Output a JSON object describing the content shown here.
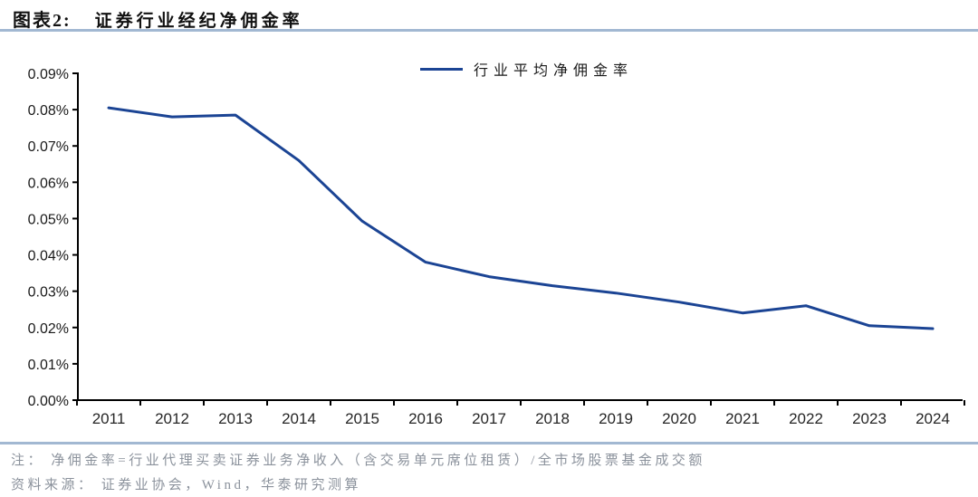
{
  "header": {
    "fig_label": "图表2:",
    "fig_title": "证券行业经纪净佣金率"
  },
  "legend": {
    "series_label": "行业平均净佣金率"
  },
  "chart_data": {
    "type": "line",
    "title": "证券行业经纪净佣金率",
    "categories": [
      "2011",
      "2012",
      "2013",
      "2014",
      "2015",
      "2016",
      "2017",
      "2018",
      "2019",
      "2020",
      "2021",
      "2022",
      "2023",
      "2024"
    ],
    "series": [
      {
        "name": "行业平均净佣金率",
        "values": [
          0.0805,
          0.078,
          0.0785,
          0.066,
          0.0493,
          0.038,
          0.034,
          0.0315,
          0.0295,
          0.027,
          0.024,
          0.026,
          0.0205,
          0.0197
        ]
      }
    ],
    "value_unit": "%",
    "ylim": [
      0.0,
      0.09
    ],
    "ytick_step": 0.01,
    "ytick_labels": [
      "0.00%",
      "0.01%",
      "0.02%",
      "0.03%",
      "0.04%",
      "0.05%",
      "0.06%",
      "0.07%",
      "0.08%",
      "0.09%"
    ],
    "grid": false,
    "legend_position": "top-center",
    "line_color": "#1b4494",
    "axis_color": "#000000"
  },
  "footnotes": {
    "note": "注： 净佣金率=行业代理买卖证券业务净收入（含交易单元席位租赁）/全市场股票基金成交额",
    "source": "资料来源： 证券业协会，Wind，华泰研究测算"
  }
}
